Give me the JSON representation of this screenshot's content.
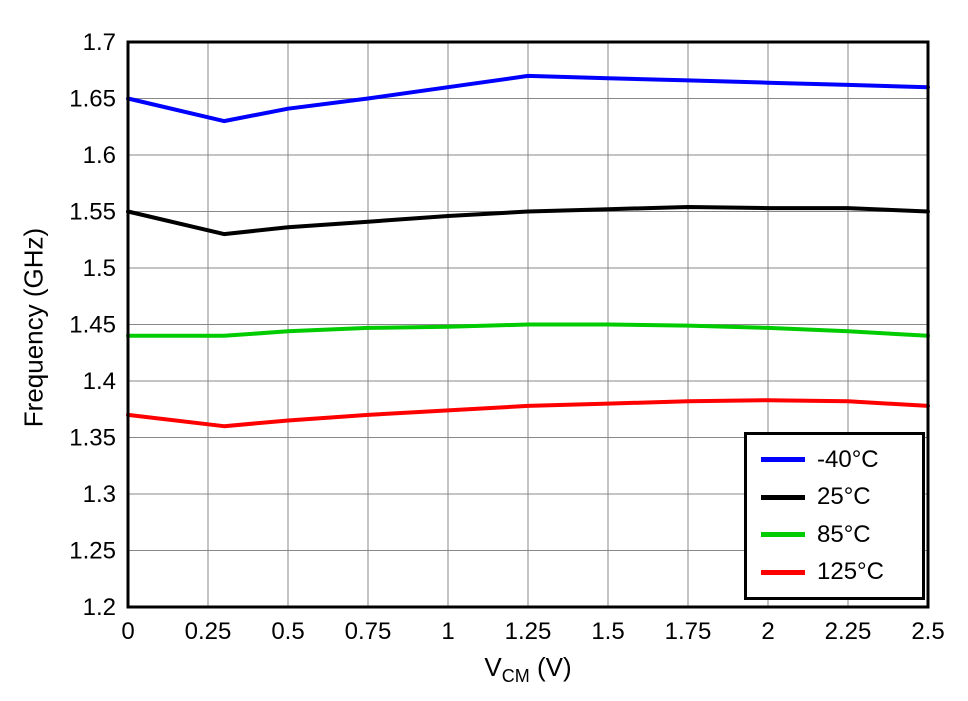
{
  "chart_data": {
    "type": "line",
    "xlabel_main": "V",
    "xlabel_sub": "CM",
    "xlabel_rest": " (V)",
    "ylabel": "Frequency (GHz)",
    "xlim": [
      0,
      2.5
    ],
    "ylim": [
      1.2,
      1.7
    ],
    "x_ticks": [
      0,
      0.25,
      0.5,
      0.75,
      1,
      1.25,
      1.5,
      1.75,
      2,
      2.25,
      2.5
    ],
    "x_tick_labels": [
      "0",
      "0.25",
      "0.5",
      "0.75",
      "1",
      "1.25",
      "1.5",
      "1.75",
      "2",
      "2.25",
      "2.5"
    ],
    "y_ticks": [
      1.2,
      1.25,
      1.3,
      1.35,
      1.4,
      1.45,
      1.5,
      1.55,
      1.6,
      1.65,
      1.7
    ],
    "y_tick_labels": [
      "1.2",
      "1.25",
      "1.3",
      "1.35",
      "1.4",
      "1.45",
      "1.5",
      "1.55",
      "1.6",
      "1.65",
      "1.7"
    ],
    "grid": true,
    "legend_position": "lower right",
    "x": [
      0,
      0.3,
      0.5,
      0.75,
      1.0,
      1.25,
      1.5,
      1.75,
      2.0,
      2.25,
      2.5
    ],
    "series": [
      {
        "name": "-40°C",
        "color": "#0000ff",
        "values": [
          1.65,
          1.63,
          1.641,
          1.65,
          1.66,
          1.67,
          1.668,
          1.666,
          1.664,
          1.662,
          1.66
        ]
      },
      {
        "name": "25°C",
        "color": "#000000",
        "values": [
          1.55,
          1.53,
          1.536,
          1.541,
          1.546,
          1.55,
          1.552,
          1.554,
          1.553,
          1.553,
          1.55
        ]
      },
      {
        "name": "85°C",
        "color": "#00cc00",
        "values": [
          1.44,
          1.44,
          1.444,
          1.447,
          1.448,
          1.45,
          1.45,
          1.449,
          1.447,
          1.444,
          1.44
        ]
      },
      {
        "name": "125°C",
        "color": "#ff0000",
        "values": [
          1.37,
          1.36,
          1.365,
          1.37,
          1.374,
          1.378,
          1.38,
          1.382,
          1.383,
          1.382,
          1.378
        ]
      }
    ],
    "styles": {
      "grid_color": "#888888",
      "border_color": "#000000",
      "line_width": 4,
      "border_width": 3,
      "background": "#ffffff"
    }
  }
}
